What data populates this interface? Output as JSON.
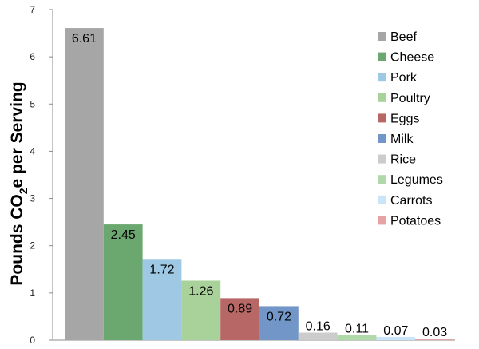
{
  "chart_data": {
    "type": "bar",
    "title": "",
    "xlabel": "",
    "ylabel": "Pounds CO",
    "ylabel_sub": "2",
    "ylabel_rest": "e per Serving",
    "ylim": [
      0,
      7
    ],
    "yticks": [
      "0",
      "1",
      "2",
      "3",
      "4",
      "5",
      "6",
      "7"
    ],
    "legend_position": "top-right",
    "categories": [
      "Beef",
      "Cheese",
      "Pork",
      "Poultry",
      "Eggs",
      "Milk",
      "Rice",
      "Legumes",
      "Carrots",
      "Potatoes"
    ],
    "values": [
      6.61,
      2.45,
      1.72,
      1.26,
      0.89,
      0.72,
      0.16,
      0.11,
      0.07,
      0.03
    ],
    "value_labels": [
      "6.61",
      "2.45",
      "1.72",
      "1.26",
      "0.89",
      "0.72",
      "0.16",
      "0.11",
      "0.07",
      "0.03"
    ],
    "colors": [
      "#a6a6a6",
      "#6aa86f",
      "#9ec8e4",
      "#a9d19a",
      "#b86767",
      "#7396c8",
      "#cccccc",
      "#b0d9a9",
      "#c9e5f7",
      "#e6a3a3"
    ]
  }
}
